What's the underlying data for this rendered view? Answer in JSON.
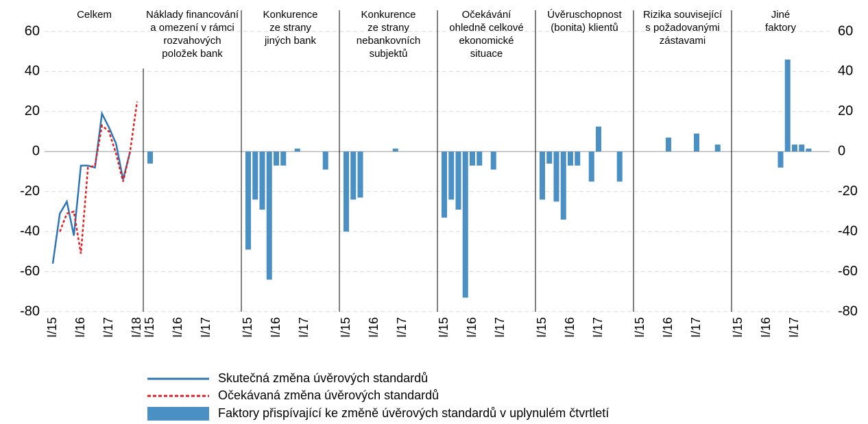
{
  "chart_data": [
    {
      "type": "line",
      "title": [
        "Celkem"
      ],
      "categories": [
        "I/15",
        null,
        null,
        null,
        "I/16",
        null,
        null,
        null,
        "I/17",
        null,
        null,
        null,
        "I/18"
      ],
      "series": [
        {
          "name": "Skutečná změna úvěrových standardů",
          "color": "#2e75b6",
          "dash": false,
          "values": [
            -56,
            -31,
            -25,
            -42,
            -7,
            -7,
            -8,
            19,
            12,
            4,
            -14,
            0,
            null
          ]
        },
        {
          "name": "Očekávaná změna úvěrových standardů",
          "color": "#e02020",
          "dash": true,
          "values": [
            null,
            -40,
            -31,
            -30,
            -51,
            -8,
            -7,
            13,
            10,
            -1,
            -15,
            0,
            25
          ]
        }
      ],
      "ylim": [
        -80,
        60
      ],
      "yticks": [
        -80,
        -60,
        -40,
        -20,
        0,
        20,
        40,
        60
      ],
      "grid": true
    },
    {
      "type": "bar",
      "title": [
        "Náklady financování",
        "a omezení v rámci",
        "rozvahových",
        "položek bank"
      ],
      "categories": [
        "I/15",
        null,
        null,
        null,
        "I/16",
        null,
        null,
        null,
        "I/17",
        null,
        null,
        null
      ],
      "values": [
        -6,
        0,
        0,
        0,
        0,
        0,
        0,
        0,
        0,
        0,
        0,
        0
      ],
      "color": "#4a90c4"
    },
    {
      "type": "bar",
      "title": [
        "Konkurence",
        "ze strany",
        "jiných bank"
      ],
      "categories": [
        "I/15",
        null,
        null,
        null,
        "I/16",
        null,
        null,
        null,
        "I/17",
        null,
        null,
        null
      ],
      "values": [
        -49,
        -24,
        -29,
        -64,
        -7,
        -7,
        0,
        1.5,
        0,
        0,
        0,
        -9
      ],
      "color": "#4a90c4"
    },
    {
      "type": "bar",
      "title": [
        "Konkurence",
        "ze strany",
        "nebankovních",
        "subjektů"
      ],
      "categories": [
        "I/15",
        null,
        null,
        null,
        "I/16",
        null,
        null,
        null,
        "I/17",
        null,
        null,
        null
      ],
      "values": [
        -40,
        -24,
        -23,
        0,
        0,
        0,
        0,
        1.5,
        0,
        0,
        0,
        0
      ],
      "color": "#4a90c4"
    },
    {
      "type": "bar",
      "title": [
        "Očekávání",
        "ohledně celkové",
        "ekonomické",
        "situace"
      ],
      "categories": [
        "I/15",
        null,
        null,
        null,
        "I/16",
        null,
        null,
        null,
        "I/17",
        null,
        null,
        null
      ],
      "values": [
        -33,
        -24,
        -29,
        -73,
        -7,
        -7,
        0,
        -9,
        0,
        0,
        0,
        0
      ],
      "color": "#4a90c4"
    },
    {
      "type": "bar",
      "title": [
        "Úvěruschopnost",
        "(bonita) klientů"
      ],
      "categories": [
        "I/15",
        null,
        null,
        null,
        "I/16",
        null,
        null,
        null,
        "I/17",
        null,
        null,
        null
      ],
      "values": [
        -24,
        -6,
        -25,
        -34,
        -7,
        -7,
        0,
        -15,
        12.5,
        0,
        0,
        -15
      ],
      "color": "#4a90c4"
    },
    {
      "type": "bar",
      "title": [
        "Rizika související",
        "s požadovanými",
        "zástavami"
      ],
      "categories": [
        "I/15",
        null,
        null,
        null,
        "I/16",
        null,
        null,
        null,
        "I/17",
        null,
        null,
        null
      ],
      "values": [
        0,
        0,
        0,
        0,
        7,
        0,
        0,
        0,
        9,
        0,
        0,
        3.5
      ],
      "color": "#4a90c4"
    },
    {
      "type": "bar",
      "title": [
        "Jiné",
        "faktory"
      ],
      "categories": [
        "I/15",
        null,
        null,
        null,
        "I/16",
        null,
        null,
        null,
        "I/17",
        null,
        null,
        null
      ],
      "values": [
        0,
        0,
        0,
        0,
        0,
        0,
        -8,
        46,
        3.5,
        3.5,
        1.5,
        0
      ],
      "color": "#4a90c4"
    }
  ],
  "legend": {
    "bars": "Faktory přispívající ke změně úvěrových standardů v uplynulém čtvrtletí"
  }
}
